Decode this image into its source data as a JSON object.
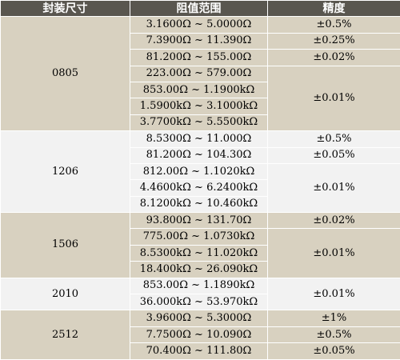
{
  "headers": [
    "封装尺寸",
    "阻值范围",
    "精度"
  ],
  "groups": [
    {
      "size": "0805",
      "ranges": [
        "3.1600Ω ~ 5.0000Ω",
        "7.3900Ω ~ 11.390Ω",
        "81.200Ω ~ 155.00Ω",
        "223.00Ω ~ 579.00Ω",
        "853.00Ω ~ 1.1900kΩ",
        "1.5900kΩ ~ 3.1000kΩ",
        "3.7700kΩ ~ 5.5500kΩ"
      ],
      "precisions": [
        {
          "value": "±0.5%",
          "span": 1
        },
        {
          "value": "±0.25%",
          "span": 1
        },
        {
          "value": "±0.02%",
          "span": 1
        },
        {
          "value": "±0.01%",
          "span": 4
        }
      ]
    },
    {
      "size": "1206",
      "ranges": [
        "8.5300Ω ~ 11.000Ω",
        "81.200Ω ~ 104.30Ω",
        "812.00Ω ~ 1.1020kΩ",
        "4.4600kΩ ~ 6.2400kΩ",
        "8.1200kΩ ~ 10.460kΩ"
      ],
      "precisions": [
        {
          "value": "±0.5%",
          "span": 1
        },
        {
          "value": "±0.05%",
          "span": 1
        },
        {
          "value": "±0.01%",
          "span": 3
        }
      ]
    },
    {
      "size": "1506",
      "ranges": [
        "93.800Ω ~ 131.70Ω",
        "775.00Ω ~ 1.0730kΩ",
        "8.5300kΩ ~ 11.020kΩ",
        "18.400kΩ ~ 26.090kΩ"
      ],
      "precisions": [
        {
          "value": "±0.02%",
          "span": 1
        },
        {
          "value": "±0.01%",
          "span": 3
        }
      ]
    },
    {
      "size": "2010",
      "ranges": [
        "853.00Ω ~ 1.1890kΩ",
        "36.000kΩ ~ 53.970kΩ"
      ],
      "precisions": [
        {
          "value": "±0.01%",
          "span": 2
        }
      ]
    },
    {
      "size": "2512",
      "ranges": [
        "3.9600Ω ~ 5.3000Ω",
        "7.7500Ω ~ 10.090Ω",
        "70.400Ω ~ 111.80Ω"
      ],
      "precisions": [
        {
          "value": "±1%",
          "span": 1
        },
        {
          "value": "±0.5%",
          "span": 1
        },
        {
          "value": "±0.05%",
          "span": 1
        }
      ]
    }
  ]
}
